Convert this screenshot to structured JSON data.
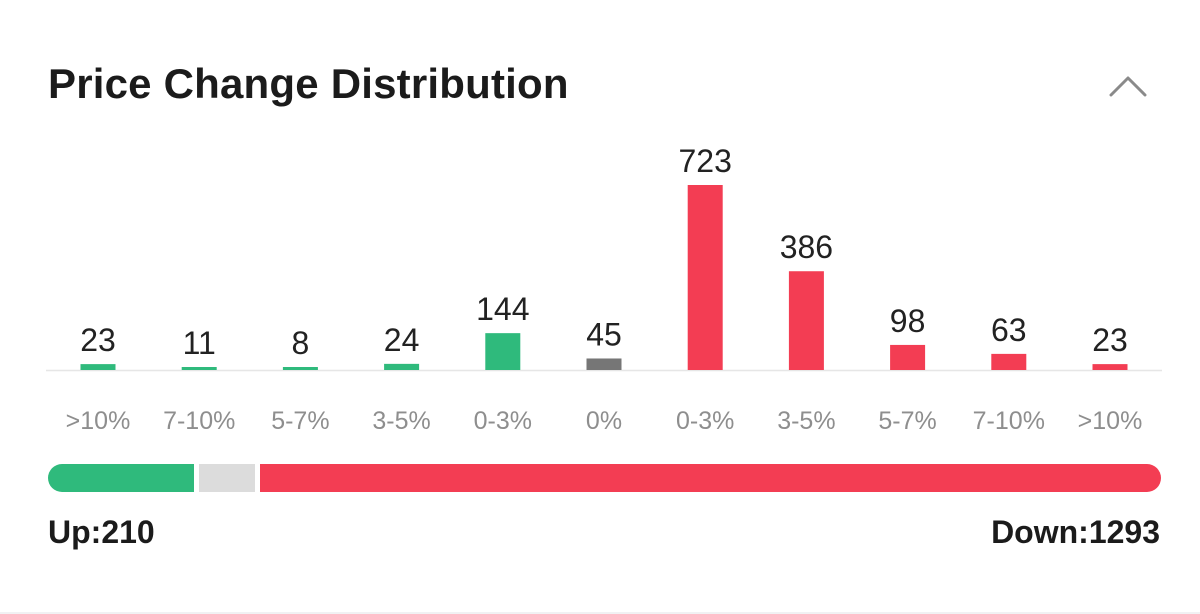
{
  "header": {
    "title": "Price Change Distribution",
    "collapse_icon": "chevron-up-icon"
  },
  "colors": {
    "up": "#2fba7c",
    "flat": "#767676",
    "down": "#f33d53",
    "ratio_flat": "#dcdcdc",
    "baseline": "#e6e6e6"
  },
  "chart_data": {
    "type": "bar",
    "title": "Price Change Distribution",
    "categories": [
      ">10%",
      "7-10%",
      "5-7%",
      "3-5%",
      "0-3%",
      "0%",
      "0-3%",
      "3-5%",
      "5-7%",
      "7-10%",
      ">10%"
    ],
    "values": [
      23,
      11,
      8,
      24,
      144,
      45,
      723,
      386,
      98,
      63,
      23
    ],
    "bar_groups": [
      "up",
      "up",
      "up",
      "up",
      "up",
      "flat",
      "down",
      "down",
      "down",
      "down",
      "down"
    ],
    "grid": false,
    "legend": "none"
  },
  "summary": {
    "up_label": "Up:210",
    "down_label": "Down:1293",
    "up_count": 210,
    "down_count": 1293
  }
}
